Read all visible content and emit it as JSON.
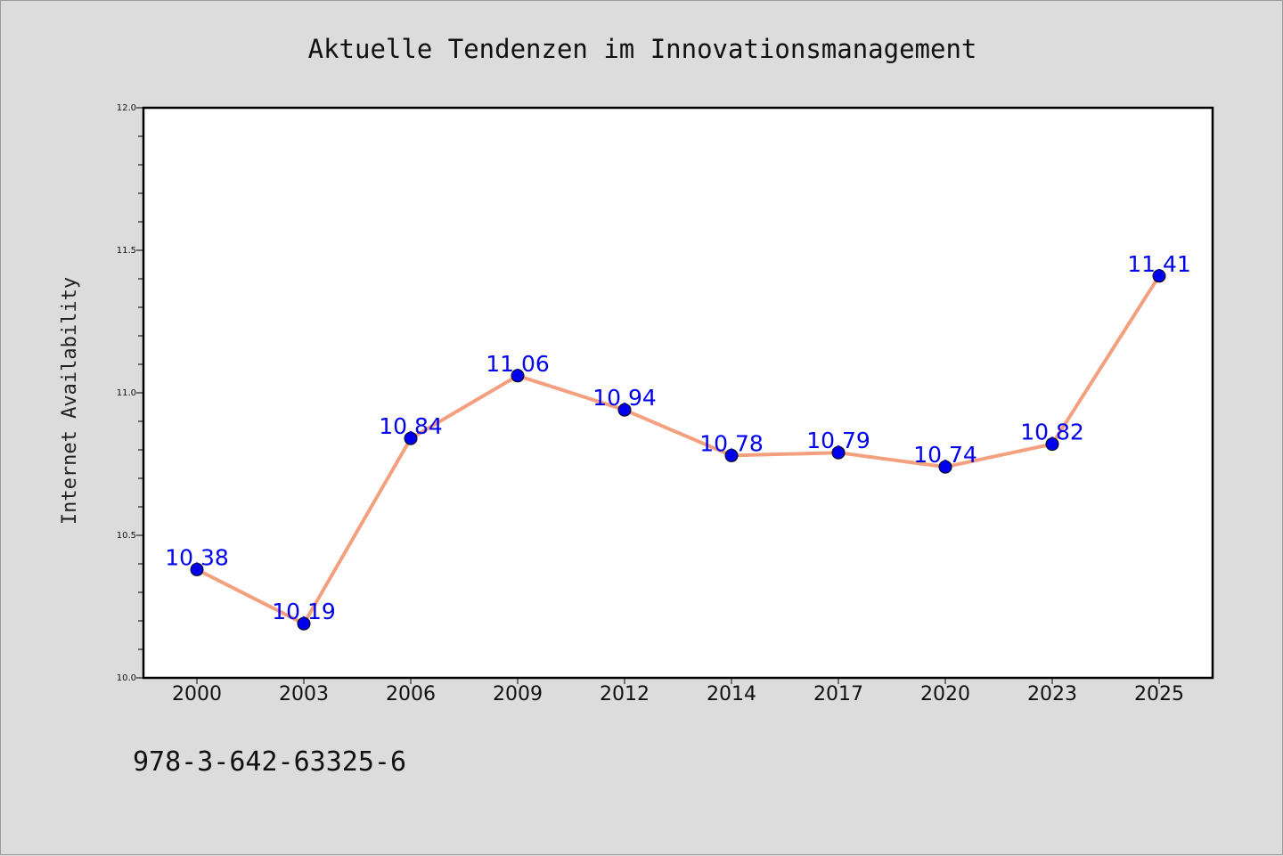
{
  "chart_data": {
    "type": "line",
    "title": "Aktuelle Tendenzen im Innovationsmanagement",
    "ylabel": "Internet Availability",
    "xlabel": "",
    "categories": [
      "2000",
      "2003",
      "2006",
      "2009",
      "2012",
      "2014",
      "2017",
      "2020",
      "2023",
      "2025"
    ],
    "series": [
      {
        "values": [
          10.38,
          10.19,
          10.84,
          11.06,
          10.94,
          10.78,
          10.79,
          10.74,
          10.82,
          11.41
        ],
        "line_color": "#f4a07f",
        "marker_color": "#0000ee"
      }
    ],
    "ylim": [
      10.0,
      12.0
    ],
    "yticks": [
      "10.0",
      "10.5",
      "11.0",
      "11.5",
      "12.0"
    ],
    "data_labels": [
      "10.38",
      "10.19",
      "10.84",
      "11.06",
      "10.94",
      "10.78",
      "10.79",
      "10.74",
      "10.82",
      "11.41"
    ],
    "grid": false,
    "legend": "none"
  },
  "annotation": {
    "isbn": "978-3-642-63325-6"
  },
  "colors": {
    "background": "#dcdcdc",
    "plot_background": "#ffffff",
    "label_color": "#0000ee"
  }
}
